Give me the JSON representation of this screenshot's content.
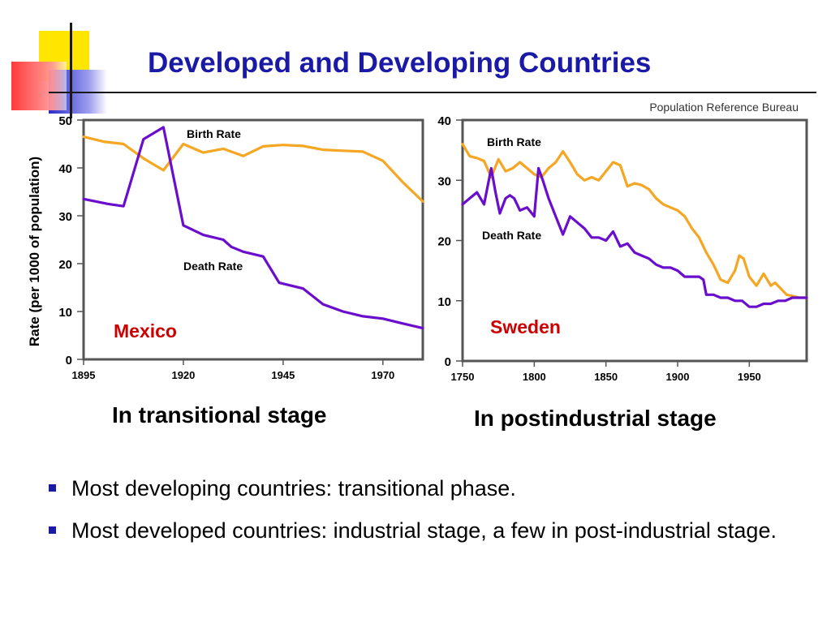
{
  "slide": {
    "title": "Developed and Developing Countries",
    "source": "Population Reference Bureau",
    "ylabel": "Rate (per 1000 of population)",
    "caption_left": "In transitional stage",
    "caption_right": "In postindustrial stage",
    "bullets": [
      "Most developing countries: transitional phase.",
      "Most developed countries: industrial stage, a few in post-industrial stage."
    ],
    "colors": {
      "title": "#1a1aa6",
      "birth_rate": "#f5a623",
      "death_rate": "#6a0dcc",
      "country_label": "#cc0000",
      "deco_yellow": "#ffe600",
      "deco_blue": "#3333cc",
      "deco_red": "#ff4040"
    }
  },
  "chart_data": [
    {
      "type": "line",
      "country": "Mexico",
      "xlim": [
        1895,
        1980
      ],
      "ylim": [
        0,
        50
      ],
      "xticks": [
        1895,
        1920,
        1945,
        1970
      ],
      "yticks": [
        0,
        10,
        20,
        30,
        40,
        50
      ],
      "series": [
        {
          "name": "Birth Rate",
          "x": [
            1895,
            1900,
            1905,
            1910,
            1915,
            1920,
            1925,
            1930,
            1935,
            1940,
            1945,
            1950,
            1955,
            1960,
            1965,
            1970,
            1975,
            1980
          ],
          "y": [
            46.5,
            45.5,
            45,
            42,
            39.5,
            45,
            43.2,
            44,
            42.5,
            44.5,
            44.8,
            44.6,
            43.8,
            43.6,
            43.4,
            41.5,
            37,
            33
          ]
        },
        {
          "name": "Death Rate",
          "x": [
            1895,
            1898,
            1901,
            1905,
            1910,
            1915,
            1920,
            1925,
            1930,
            1932,
            1935,
            1940,
            1944,
            1950,
            1955,
            1960,
            1965,
            1970,
            1975,
            1980
          ],
          "y": [
            33.5,
            33,
            32.5,
            32,
            46,
            48.5,
            28,
            26,
            25,
            23.5,
            22.5,
            21.5,
            16,
            14.8,
            11.5,
            10,
            9,
            8.5,
            7.5,
            6.5
          ]
        }
      ]
    },
    {
      "type": "line",
      "country": "Sweden",
      "xlim": [
        1750,
        1990
      ],
      "ylim": [
        0,
        40
      ],
      "xticks": [
        1750,
        1800,
        1850,
        1900,
        1950
      ],
      "yticks": [
        0,
        10,
        20,
        30,
        40
      ],
      "series": [
        {
          "name": "Birth Rate",
          "x": [
            1750,
            1755,
            1760,
            1765,
            1770,
            1775,
            1780,
            1785,
            1790,
            1795,
            1800,
            1805,
            1810,
            1815,
            1820,
            1825,
            1830,
            1835,
            1840,
            1845,
            1850,
            1855,
            1860,
            1865,
            1870,
            1875,
            1880,
            1885,
            1890,
            1895,
            1900,
            1905,
            1910,
            1915,
            1920,
            1925,
            1930,
            1935,
            1940,
            1943,
            1946,
            1950,
            1955,
            1960,
            1965,
            1968,
            1972,
            1976,
            1980,
            1985,
            1990
          ],
          "y": [
            36,
            34,
            33.7,
            33.2,
            30.5,
            33.5,
            31.5,
            32,
            33,
            32,
            31,
            30.5,
            32,
            33,
            34.8,
            33,
            31,
            30,
            30.5,
            30,
            31.5,
            33,
            32.5,
            29,
            29.5,
            29.2,
            28.5,
            27,
            26,
            25.5,
            25,
            24,
            22,
            20.5,
            18,
            16,
            13.5,
            13,
            15,
            17.5,
            17,
            14,
            12.5,
            14.5,
            12.5,
            13,
            12,
            11,
            10.8,
            10.5,
            10.5
          ]
        },
        {
          "name": "Death Rate",
          "x": [
            1750,
            1755,
            1760,
            1765,
            1770,
            1773,
            1776,
            1780,
            1783,
            1786,
            1790,
            1795,
            1800,
            1803,
            1806,
            1810,
            1815,
            1820,
            1825,
            1830,
            1835,
            1840,
            1845,
            1850,
            1855,
            1860,
            1865,
            1870,
            1875,
            1880,
            1885,
            1890,
            1895,
            1900,
            1905,
            1910,
            1915,
            1918,
            1920,
            1925,
            1930,
            1935,
            1940,
            1945,
            1950,
            1955,
            1960,
            1965,
            1970,
            1975,
            1980,
            1990
          ],
          "y": [
            26,
            27,
            28,
            26,
            32,
            28,
            24.5,
            27,
            27.5,
            27,
            25,
            25.5,
            24,
            32,
            30,
            27,
            24,
            21,
            24,
            23,
            22,
            20.5,
            20.5,
            20,
            21.5,
            19,
            19.5,
            18,
            17.5,
            17,
            16,
            15.5,
            15.5,
            15,
            14,
            14,
            14,
            13.5,
            11,
            11,
            10.5,
            10.5,
            10,
            10,
            9,
            9,
            9.5,
            9.5,
            10,
            10,
            10.5,
            10.5
          ]
        }
      ]
    }
  ],
  "labels": {
    "mexico": {
      "birth": "Birth Rate",
      "death": "Death Rate",
      "country": "Mexico"
    },
    "sweden": {
      "birth": "Birth Rate",
      "death": "Death Rate",
      "country": "Sweden"
    }
  }
}
